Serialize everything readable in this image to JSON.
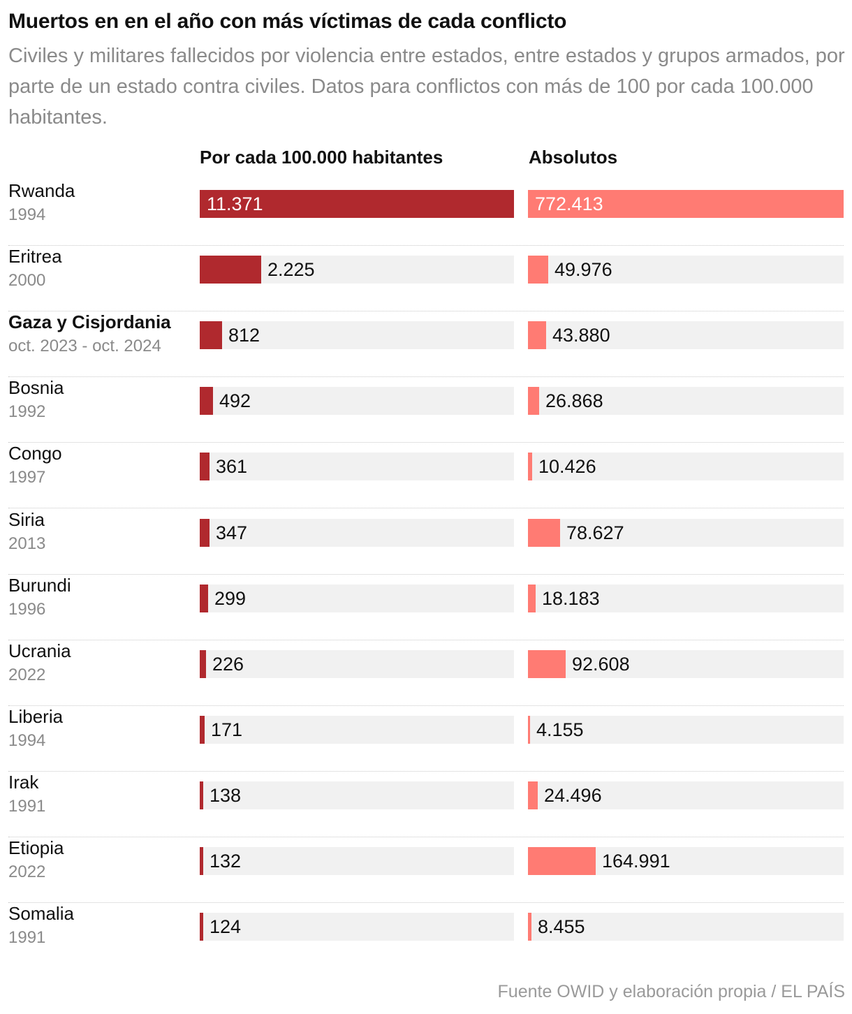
{
  "title": "Muertos en en el año con más víctimas de cada conflicto",
  "subtitle": "Civiles y militares fallecidos por violencia entre estados, entre estados y grupos armados, por parte de un estado contra civiles. Datos para conflictos con más de 100 por cada 100.000 habitantes.",
  "source": "Fuente OWID y elaboración propia / EL PAÍS",
  "colors": {
    "per_bar": "#b0292e",
    "abs_bar": "#ff7b73",
    "track": "#f1f1f1"
  },
  "chart_data": {
    "type": "bar",
    "orientation": "horizontal",
    "title": "Muertos en en el año con más víctimas de cada conflicto",
    "columns": [
      {
        "key": "per",
        "label": "Por cada 100.000 habitantes",
        "max": 11371
      },
      {
        "key": "abs",
        "label": "Absolutos",
        "max": 772413
      }
    ],
    "rows": [
      {
        "country": "Rwanda",
        "period": "1994",
        "per": 11371,
        "per_label": "11.371",
        "abs": 772413,
        "abs_label": "772.413",
        "bold": false
      },
      {
        "country": "Eritrea",
        "period": "2000",
        "per": 2225,
        "per_label": "2.225",
        "abs": 49976,
        "abs_label": "49.976",
        "bold": false
      },
      {
        "country": "Gaza y Cisjordania",
        "period": "oct. 2023 - oct. 2024",
        "per": 812,
        "per_label": "812",
        "abs": 43880,
        "abs_label": "43.880",
        "bold": true
      },
      {
        "country": "Bosnia",
        "period": "1992",
        "per": 492,
        "per_label": "492",
        "abs": 26868,
        "abs_label": "26.868",
        "bold": false
      },
      {
        "country": "Congo",
        "period": "1997",
        "per": 361,
        "per_label": "361",
        "abs": 10426,
        "abs_label": "10.426",
        "bold": false
      },
      {
        "country": "Siria",
        "period": "2013",
        "per": 347,
        "per_label": "347",
        "abs": 78627,
        "abs_label": "78.627",
        "bold": false
      },
      {
        "country": "Burundi",
        "period": "1996",
        "per": 299,
        "per_label": "299",
        "abs": 18183,
        "abs_label": "18.183",
        "bold": false
      },
      {
        "country": "Ucrania",
        "period": "2022",
        "per": 226,
        "per_label": "226",
        "abs": 92608,
        "abs_label": "92.608",
        "bold": false
      },
      {
        "country": "Liberia",
        "period": "1994",
        "per": 171,
        "per_label": "171",
        "abs": 4155,
        "abs_label": "4.155",
        "bold": false
      },
      {
        "country": "Irak",
        "period": "1991",
        "per": 138,
        "per_label": "138",
        "abs": 24496,
        "abs_label": "24.496",
        "bold": false
      },
      {
        "country": "Etiopia",
        "period": "2022",
        "per": 132,
        "per_label": "132",
        "abs": 164991,
        "abs_label": "164.991",
        "bold": false
      },
      {
        "country": "Somalia",
        "period": "1991",
        "per": 124,
        "per_label": "124",
        "abs": 8455,
        "abs_label": "8.455",
        "bold": false
      }
    ]
  }
}
